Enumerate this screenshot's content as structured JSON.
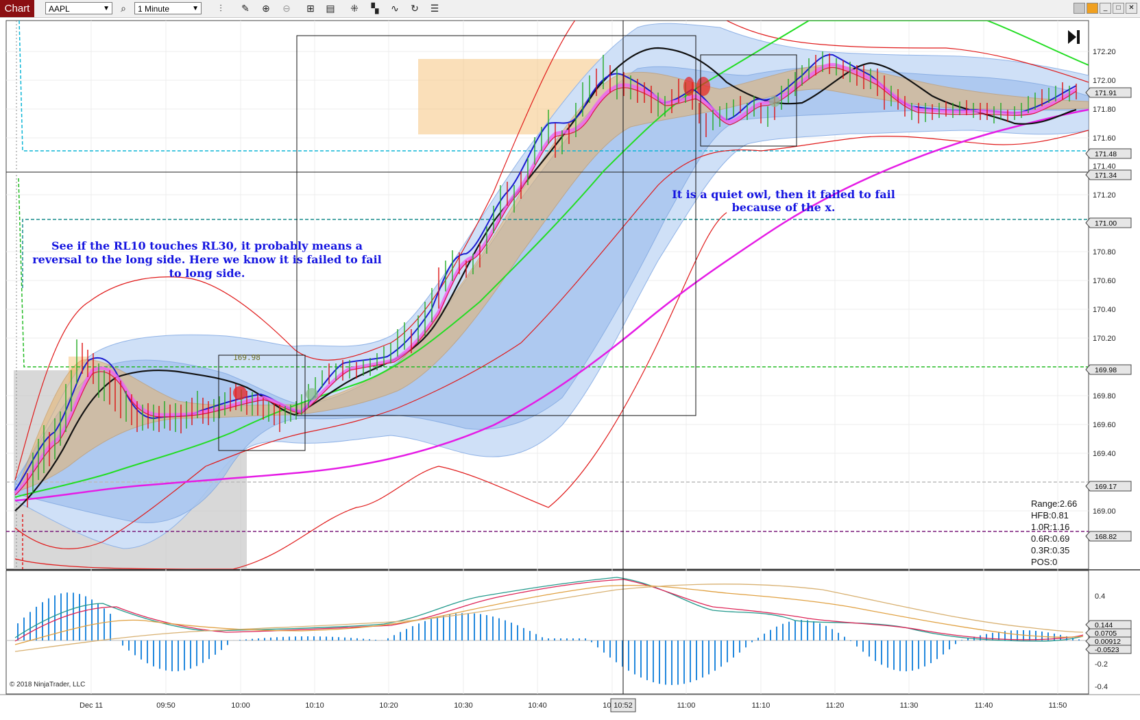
{
  "toolbar": {
    "tab_label": "Chart",
    "instrument": "AAPL",
    "interval": "1 Minute",
    "icons": [
      "magnifier-icon",
      "bars-icon",
      "pencil-icon",
      "zoom-in-icon",
      "zoom-out-icon",
      "crosshair-icon",
      "data-box-icon",
      "strategies-icon",
      "chart-style-icon",
      "indicators-icon",
      "reload-icon",
      "properties-icon"
    ]
  },
  "price_axis": {
    "ticks": [
      "172.20",
      "172.00",
      "171.80",
      "171.60",
      "171.40",
      "171.20",
      "170.80",
      "170.60",
      "170.40",
      "170.20",
      "169.80",
      "169.60",
      "169.40",
      "169.00"
    ],
    "markers": [
      {
        "label": "171.91",
        "color": "#e6e6e6"
      },
      {
        "label": "171.48",
        "color": "#e6e6e6"
      },
      {
        "label": "171.34",
        "color": "#e6e6e6"
      },
      {
        "label": "171.00",
        "color": "#e6e6e6"
      },
      {
        "label": "169.98",
        "color": "#e6e6e6"
      },
      {
        "label": "169.17",
        "color": "#e6e6e6"
      },
      {
        "label": "168.82",
        "color": "#e6e6e6"
      }
    ]
  },
  "osc_axis": {
    "ticks": [
      "0.4",
      "-0.2",
      "-0.4"
    ],
    "markers": [
      "0.144",
      "0.0705",
      "0.00912",
      "-0.0523"
    ]
  },
  "time_axis": {
    "labels": [
      "Dec 11",
      "09:50",
      "10:00",
      "10:10",
      "10:20",
      "10:30",
      "10:40",
      "10:50",
      "11:00",
      "11:10",
      "11:20",
      "11:30",
      "11:40",
      "11:50"
    ],
    "cursor_label": "10:52"
  },
  "annotations": {
    "left_note": [
      "See if the RL10 touches RL30, it probably means a",
      "reversal to the long side. Here we know it is failed to fail",
      "to long side."
    ],
    "right_note": [
      "It is a quiet owl, then it failed to fail",
      "because of the x."
    ],
    "level_tag": "169.98"
  },
  "stats": [
    "Range:2.66",
    "HFB:0.81",
    "1.0R:1.16",
    "0.6R:0.69",
    "0.3R:0.35",
    "POS:0"
  ],
  "copyright": "© 2018 NinjaTrader, LLC",
  "colors": {
    "tab": "#8b0f12",
    "annotation_text": "#1515e0",
    "band_fill": "#a9c6ef",
    "orange_zone": "#f6c98a",
    "grey_zone": "#c8c8c8",
    "magenta_ma": "#e51be5",
    "green_ma": "#22dd22",
    "red_envelope": "#e01818",
    "cyan_level": "#0bb5d6",
    "teal_level": "#178c8c",
    "green_level": "#22bb22",
    "purple_level": "#7a1a7a",
    "histogram": "#2288dd"
  }
}
